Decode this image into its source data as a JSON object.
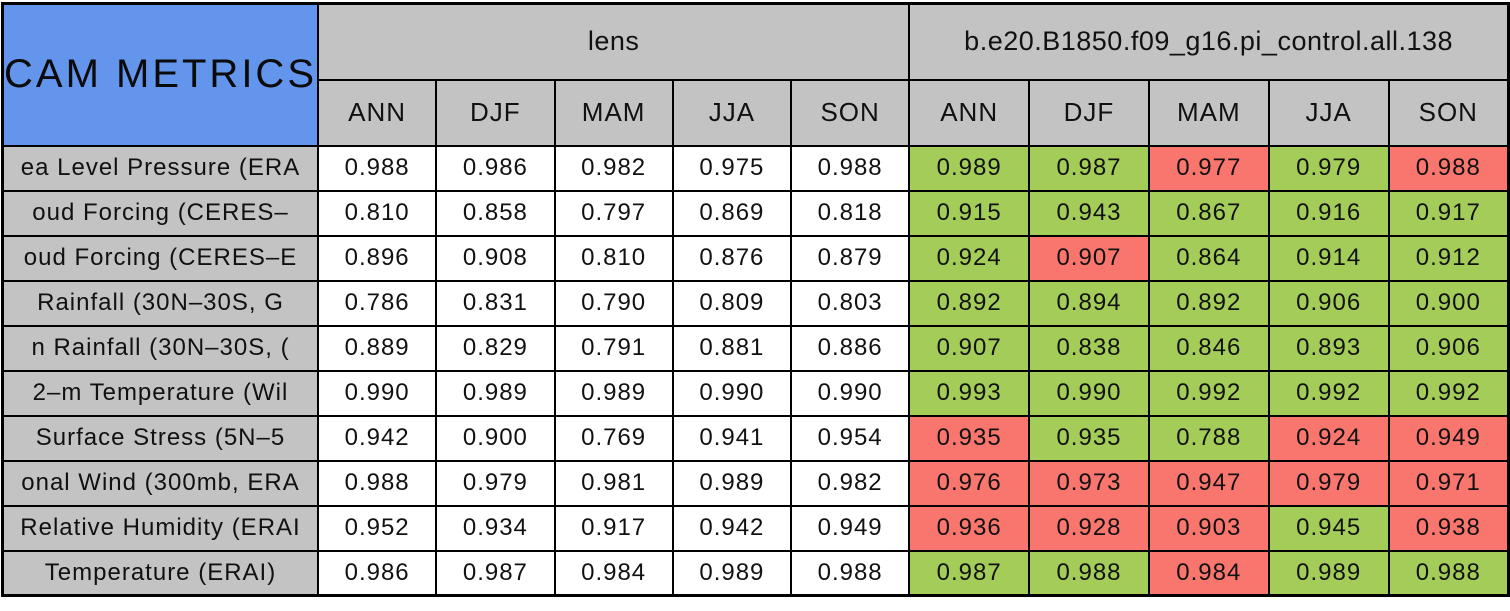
{
  "colors": {
    "title_cell_bg": "#6495ed",
    "header_bg": "#c3c3c3",
    "lens_value_bg": "#ffffff",
    "better_value_bg": "#a4cc58",
    "worse_value_bg": "#f9766e",
    "border": "#000000",
    "text": "#111111"
  },
  "chart_data": {
    "type": "table",
    "title": "CAM METRICS",
    "column_groups": [
      {
        "label": "lens",
        "seasons": [
          "ANN",
          "DJF",
          "MAM",
          "JJA",
          "SON"
        ]
      },
      {
        "label": "b.e20.B1850.f09_g16.pi_control.all.138",
        "seasons": [
          "ANN",
          "DJF",
          "MAM",
          "JJA",
          "SON"
        ]
      }
    ],
    "rows": [
      {
        "label": "ea Level Pressure (ERA",
        "lens": [
          "0.988",
          "0.986",
          "0.982",
          "0.975",
          "0.988"
        ],
        "control": [
          "0.989",
          "0.987",
          "0.977",
          "0.979",
          "0.988"
        ],
        "control_status": [
          "good",
          "good",
          "bad",
          "good",
          "bad"
        ]
      },
      {
        "label": "oud Forcing (CERES–",
        "lens": [
          "0.810",
          "0.858",
          "0.797",
          "0.869",
          "0.818"
        ],
        "control": [
          "0.915",
          "0.943",
          "0.867",
          "0.916",
          "0.917"
        ],
        "control_status": [
          "good",
          "good",
          "good",
          "good",
          "good"
        ]
      },
      {
        "label": "oud Forcing (CERES–E",
        "lens": [
          "0.896",
          "0.908",
          "0.810",
          "0.876",
          "0.879"
        ],
        "control": [
          "0.924",
          "0.907",
          "0.864",
          "0.914",
          "0.912"
        ],
        "control_status": [
          "good",
          "bad",
          "good",
          "good",
          "good"
        ]
      },
      {
        "label": "Rainfall (30N–30S, G",
        "lens": [
          "0.786",
          "0.831",
          "0.790",
          "0.809",
          "0.803"
        ],
        "control": [
          "0.892",
          "0.894",
          "0.892",
          "0.906",
          "0.900"
        ],
        "control_status": [
          "good",
          "good",
          "good",
          "good",
          "good"
        ]
      },
      {
        "label": "n Rainfall (30N–30S, (",
        "lens": [
          "0.889",
          "0.829",
          "0.791",
          "0.881",
          "0.886"
        ],
        "control": [
          "0.907",
          "0.838",
          "0.846",
          "0.893",
          "0.906"
        ],
        "control_status": [
          "good",
          "good",
          "good",
          "good",
          "good"
        ]
      },
      {
        "label": "2–m Temperature (Wil",
        "lens": [
          "0.990",
          "0.989",
          "0.989",
          "0.990",
          "0.990"
        ],
        "control": [
          "0.993",
          "0.990",
          "0.992",
          "0.992",
          "0.992"
        ],
        "control_status": [
          "good",
          "good",
          "good",
          "good",
          "good"
        ]
      },
      {
        "label": "Surface Stress (5N–5",
        "lens": [
          "0.942",
          "0.900",
          "0.769",
          "0.941",
          "0.954"
        ],
        "control": [
          "0.935",
          "0.935",
          "0.788",
          "0.924",
          "0.949"
        ],
        "control_status": [
          "bad",
          "good",
          "good",
          "bad",
          "bad"
        ]
      },
      {
        "label": "onal Wind (300mb, ERA",
        "lens": [
          "0.988",
          "0.979",
          "0.981",
          "0.989",
          "0.982"
        ],
        "control": [
          "0.976",
          "0.973",
          "0.947",
          "0.979",
          "0.971"
        ],
        "control_status": [
          "bad",
          "bad",
          "bad",
          "bad",
          "bad"
        ]
      },
      {
        "label": "Relative Humidity (ERAI",
        "lens": [
          "0.952",
          "0.934",
          "0.917",
          "0.942",
          "0.949"
        ],
        "control": [
          "0.936",
          "0.928",
          "0.903",
          "0.945",
          "0.938"
        ],
        "control_status": [
          "bad",
          "bad",
          "bad",
          "good",
          "bad"
        ]
      },
      {
        "label": "Temperature (ERAI)",
        "lens": [
          "0.986",
          "0.987",
          "0.984",
          "0.989",
          "0.988"
        ],
        "control": [
          "0.987",
          "0.988",
          "0.984",
          "0.989",
          "0.988"
        ],
        "control_status": [
          "good",
          "good",
          "bad",
          "good",
          "good"
        ]
      }
    ]
  }
}
